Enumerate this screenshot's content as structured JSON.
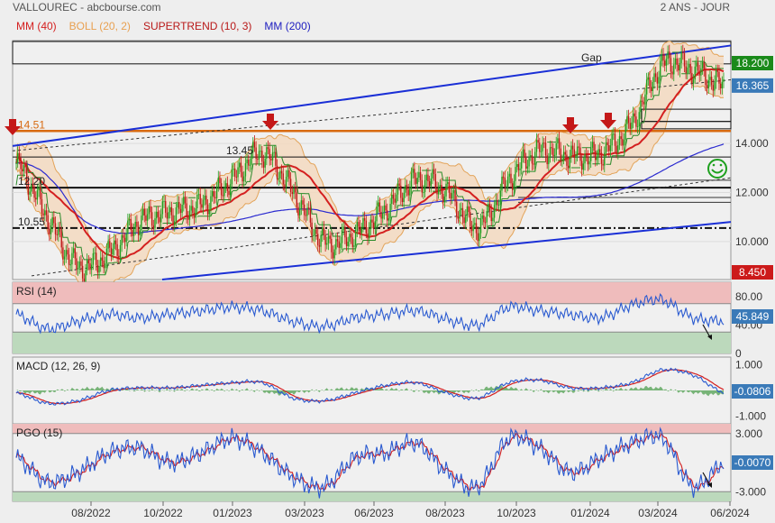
{
  "header": {
    "title": "VALLOUREC - abcbourse.com",
    "period": "2 ANS - JOUR"
  },
  "legend": [
    {
      "label": "MM (40)",
      "color": "#d42020"
    },
    {
      "label": "BOLL (20, 2)",
      "color": "#e8a050"
    },
    {
      "label": "SUPERTREND (10, 3)",
      "color": "#b81818"
    },
    {
      "label": "MM (200)",
      "color": "#2020c0"
    }
  ],
  "x_axis": [
    "08/2022",
    "10/2022",
    "01/2023",
    "03/2023",
    "06/2023",
    "08/2023",
    "10/2023",
    "01/2024",
    "03/2024",
    "06/2024"
  ],
  "price_panel": {
    "y_ticks": [
      "14.000",
      "12.000",
      "10.000"
    ],
    "badges": [
      {
        "label": "18.200",
        "color": "#1a8a1a"
      },
      {
        "label": "16.365",
        "color": "#3a7ab8"
      },
      {
        "label": "8.450",
        "color": "#cc1a1a"
      }
    ],
    "annotations": [
      "14.51",
      "13.45",
      "12.20",
      "10.55",
      "Gap"
    ],
    "levels": [
      14.51,
      13.45,
      12.2,
      10.55
    ]
  },
  "rsi_panel": {
    "title": "RSI (14)",
    "y_ticks": [
      "80.00",
      "40.00",
      "0"
    ],
    "badge": "45.849",
    "badge_color": "#3a7ab8"
  },
  "macd_panel": {
    "title": "MACD (12, 26, 9)",
    "y_ticks": [
      "1.000",
      "0",
      "-1.000"
    ],
    "badge": "-0.0806",
    "badge_color": "#3a7ab8"
  },
  "pgo_panel": {
    "title": "PGO (15)",
    "y_ticks": [
      "3.000",
      "0",
      "-3.000"
    ],
    "badge": "-0.0070",
    "badge_color": "#3a7ab8"
  },
  "chart_data": {
    "type": "line",
    "x": [
      "2022-06",
      "2022-07",
      "2022-08",
      "2022-09",
      "2022-10",
      "2022-11",
      "2022-12",
      "2023-01",
      "2023-02",
      "2023-03",
      "2023-04",
      "2023-05",
      "2023-06",
      "2023-07",
      "2023-08",
      "2023-09",
      "2023-10",
      "2023-11",
      "2023-12",
      "2024-01",
      "2024-02",
      "2024-03",
      "2024-04",
      "2024-05"
    ],
    "series": [
      {
        "values": [
          13.2,
          11.0,
          9.0,
          9.5,
          10.8,
          11.2,
          11.5,
          12.5,
          13.6,
          12.0,
          10.0,
          10.3,
          11.3,
          12.5,
          12.0,
          10.6,
          12.5,
          13.7,
          13.5,
          13.6,
          14.8,
          17.2,
          17.0,
          16.365
        ]
      }
    ],
    "ylim": [
      8.45,
      18.2
    ],
    "rsi": [
      55,
      35,
      45,
      55,
      50,
      55,
      60,
      65,
      60,
      45,
      38,
      50,
      55,
      60,
      48,
      40,
      65,
      60,
      55,
      50,
      68,
      75,
      50,
      45.849
    ],
    "macd": [
      -0.1,
      -0.5,
      -0.4,
      0.0,
      0.1,
      0.1,
      0.2,
      0.3,
      0.3,
      -0.3,
      -0.4,
      -0.1,
      0.2,
      0.3,
      -0.1,
      -0.3,
      0.3,
      0.4,
      0.1,
      0.1,
      0.3,
      0.8,
      0.6,
      -0.0806
    ],
    "pgo": [
      0.5,
      -2.0,
      -1.0,
      1.0,
      1.5,
      0.0,
      1.0,
      2.5,
      1.0,
      -1.5,
      -2.5,
      0.5,
      1.0,
      2.0,
      -1.0,
      -2.5,
      2.5,
      1.5,
      -1.0,
      0.5,
      2.0,
      2.5,
      -2.5,
      -0.007
    ]
  }
}
